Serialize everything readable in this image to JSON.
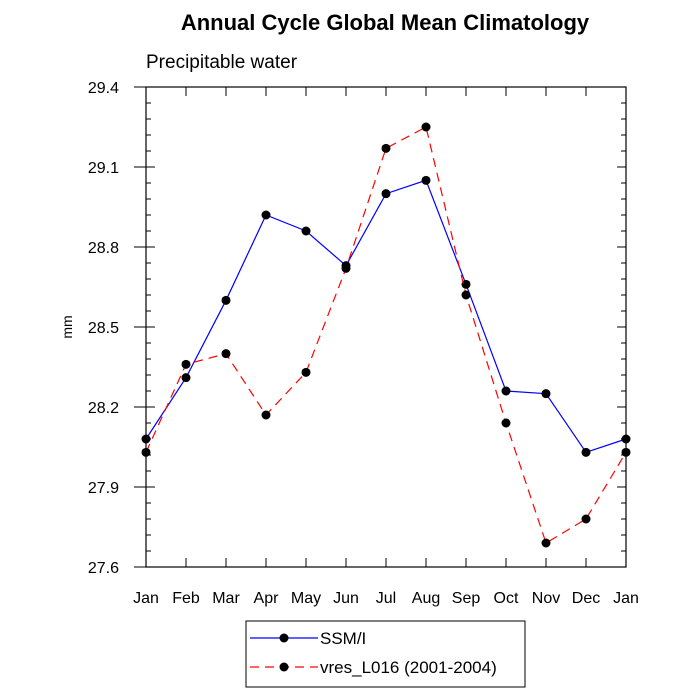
{
  "chart_data": {
    "type": "line",
    "title": "Annual Cycle Global Mean Climatology",
    "subtitle": "Precipitable water",
    "ylabel": "mm",
    "xlabel": "",
    "categories": [
      "Jan",
      "Feb",
      "Mar",
      "Apr",
      "May",
      "Jun",
      "Jul",
      "Aug",
      "Sep",
      "Oct",
      "Nov",
      "Dec",
      "Jan"
    ],
    "ylim": [
      27.6,
      29.4
    ],
    "yticks": [
      "29.4",
      "29.1",
      "28.8",
      "28.5",
      "28.2",
      "27.9",
      "27.6"
    ],
    "series": [
      {
        "name": "SSM/I",
        "color": "#0000ff",
        "dash": "solid",
        "values": [
          28.08,
          28.31,
          28.6,
          28.92,
          28.86,
          28.73,
          29.0,
          29.05,
          28.66,
          28.26,
          28.25,
          28.03,
          28.08
        ]
      },
      {
        "name": "vres_L016 (2001-2004)",
        "color": "#ff0000",
        "dash": "dashed",
        "values": [
          28.03,
          28.36,
          28.4,
          28.17,
          28.33,
          28.72,
          29.17,
          29.25,
          28.62,
          28.14,
          27.69,
          27.78,
          28.03
        ]
      }
    ],
    "legend_position": "bottom-center",
    "grid": false
  }
}
